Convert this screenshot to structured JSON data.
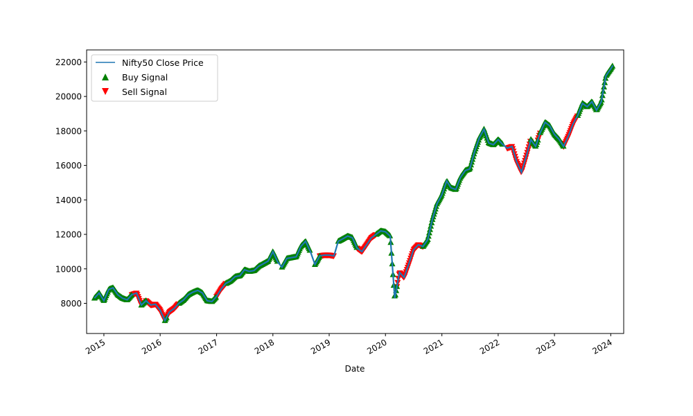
{
  "chart_data": {
    "type": "line",
    "title": "",
    "xlabel": "Date",
    "ylabel": "",
    "x_range": [
      "2014-09-11",
      "2024-03-25"
    ],
    "ylim": [
      6250,
      22700
    ],
    "y_ticks": [
      8000,
      10000,
      12000,
      14000,
      16000,
      18000,
      20000,
      22000
    ],
    "x_ticks": [
      {
        "label": "2015",
        "date": "2015-01-01"
      },
      {
        "label": "2016",
        "date": "2016-01-01"
      },
      {
        "label": "2017",
        "date": "2017-01-01"
      },
      {
        "label": "2018",
        "date": "2018-01-01"
      },
      {
        "label": "2019",
        "date": "2019-01-01"
      },
      {
        "label": "2020",
        "date": "2020-01-01"
      },
      {
        "label": "2021",
        "date": "2021-01-01"
      },
      {
        "label": "2022",
        "date": "2022-01-01"
      },
      {
        "label": "2023",
        "date": "2023-01-01"
      },
      {
        "label": "2024",
        "date": "2024-01-01"
      }
    ],
    "grid": false,
    "legend_position": "top-left",
    "colors": {
      "line": "#1f77b4",
      "buy": "#008000",
      "sell": "#ff0000"
    },
    "series": [
      {
        "name": "Nifty50 Close Price",
        "kind": "line",
        "points": [
          [
            "2014-11-01",
            8300
          ],
          [
            "2014-12-01",
            8600
          ],
          [
            "2015-01-01",
            8150
          ],
          [
            "2015-02-01",
            8800
          ],
          [
            "2015-03-01",
            8900
          ],
          [
            "2015-04-01",
            8500
          ],
          [
            "2015-05-01",
            8300
          ],
          [
            "2015-06-01",
            8200
          ],
          [
            "2015-07-01",
            8500
          ],
          [
            "2015-08-01",
            8600
          ],
          [
            "2015-09-01",
            7900
          ],
          [
            "2015-10-01",
            8150
          ],
          [
            "2015-11-01",
            7900
          ],
          [
            "2015-12-01",
            7950
          ],
          [
            "2016-01-01",
            7600
          ],
          [
            "2016-02-01",
            7000
          ],
          [
            "2016-03-01",
            7500
          ],
          [
            "2016-04-01",
            7700
          ],
          [
            "2016-05-01",
            8000
          ],
          [
            "2016-06-01",
            8200
          ],
          [
            "2016-07-01",
            8500
          ],
          [
            "2016-08-01",
            8650
          ],
          [
            "2016-09-01",
            8750
          ],
          [
            "2016-10-01",
            8600
          ],
          [
            "2016-11-01",
            8150
          ],
          [
            "2016-12-01",
            8100
          ],
          [
            "2017-01-01",
            8400
          ],
          [
            "2017-02-01",
            8850
          ],
          [
            "2017-03-01",
            9150
          ],
          [
            "2017-04-01",
            9300
          ],
          [
            "2017-05-01",
            9550
          ],
          [
            "2017-06-01",
            9600
          ],
          [
            "2017-07-01",
            9950
          ],
          [
            "2017-08-01",
            9850
          ],
          [
            "2017-09-01",
            9900
          ],
          [
            "2017-10-01",
            10150
          ],
          [
            "2017-11-01",
            10300
          ],
          [
            "2017-12-01",
            10450
          ],
          [
            "2018-01-01",
            11000
          ],
          [
            "2018-02-01",
            10400
          ],
          [
            "2018-03-01",
            10100
          ],
          [
            "2018-04-01",
            10600
          ],
          [
            "2018-05-01",
            10650
          ],
          [
            "2018-06-01",
            10700
          ],
          [
            "2018-07-01",
            11300
          ],
          [
            "2018-08-01",
            11600
          ],
          [
            "2018-09-01",
            11000
          ],
          [
            "2018-10-01",
            10250
          ],
          [
            "2018-11-01",
            10750
          ],
          [
            "2018-12-01",
            10800
          ],
          [
            "2019-01-01",
            10800
          ],
          [
            "2019-02-01",
            10750
          ],
          [
            "2019-03-01",
            11600
          ],
          [
            "2019-04-01",
            11750
          ],
          [
            "2019-05-01",
            11900
          ],
          [
            "2019-06-01",
            11800
          ],
          [
            "2019-07-01",
            11200
          ],
          [
            "2019-08-01",
            11000
          ],
          [
            "2019-09-01",
            11400
          ],
          [
            "2019-10-01",
            11800
          ],
          [
            "2019-11-01",
            12000
          ],
          [
            "2019-12-01",
            12200
          ],
          [
            "2020-01-01",
            12150
          ],
          [
            "2020-02-01",
            11900
          ],
          [
            "2020-03-01",
            8300
          ],
          [
            "2020-04-01",
            9800
          ],
          [
            "2020-05-01",
            9500
          ],
          [
            "2020-06-01",
            10300
          ],
          [
            "2020-07-01",
            11100
          ],
          [
            "2020-08-01",
            11400
          ],
          [
            "2020-09-01",
            11300
          ],
          [
            "2020-10-01",
            11700
          ],
          [
            "2020-11-01",
            12900
          ],
          [
            "2020-12-01",
            13800
          ],
          [
            "2021-01-01",
            14300
          ],
          [
            "2021-02-01",
            15100
          ],
          [
            "2021-03-01",
            14700
          ],
          [
            "2021-04-01",
            14600
          ],
          [
            "2021-05-01",
            15300
          ],
          [
            "2021-06-01",
            15700
          ],
          [
            "2021-07-01",
            15800
          ],
          [
            "2021-08-01",
            16800
          ],
          [
            "2021-09-01",
            17600
          ],
          [
            "2021-10-01",
            18100
          ],
          [
            "2021-11-01",
            17300
          ],
          [
            "2021-12-01",
            17200
          ],
          [
            "2022-01-01",
            17500
          ],
          [
            "2022-02-01",
            17200
          ],
          [
            "2022-03-01",
            17000
          ],
          [
            "2022-04-01",
            17100
          ],
          [
            "2022-05-01",
            16200
          ],
          [
            "2022-06-01",
            15600
          ],
          [
            "2022-07-01",
            16500
          ],
          [
            "2022-08-01",
            17500
          ],
          [
            "2022-09-01",
            17100
          ],
          [
            "2022-10-01",
            17900
          ],
          [
            "2022-11-01",
            18500
          ],
          [
            "2022-12-01",
            18300
          ],
          [
            "2023-01-01",
            17800
          ],
          [
            "2023-02-01",
            17500
          ],
          [
            "2023-03-01",
            17100
          ],
          [
            "2023-04-01",
            17700
          ],
          [
            "2023-05-01",
            18400
          ],
          [
            "2023-06-01",
            18900
          ],
          [
            "2023-07-01",
            19600
          ],
          [
            "2023-08-01",
            19400
          ],
          [
            "2023-09-01",
            19700
          ],
          [
            "2023-10-01",
            19200
          ],
          [
            "2023-11-01",
            19700
          ],
          [
            "2023-12-01",
            21200
          ],
          [
            "2024-01-01",
            21600
          ],
          [
            "2024-01-15",
            21800
          ]
        ]
      },
      {
        "name": "Buy Signal",
        "kind": "scatter",
        "marker": "triangle-up",
        "ranges": [
          [
            "2014-11-01",
            "2015-07-01"
          ],
          [
            "2015-09-01",
            "2015-10-01"
          ],
          [
            "2016-02-01",
            "2016-02-15"
          ],
          [
            "2016-05-01",
            "2016-12-31"
          ],
          [
            "2017-03-01",
            "2018-02-01"
          ],
          [
            "2018-03-01",
            "2018-09-01"
          ],
          [
            "2018-10-01",
            "2018-11-01"
          ],
          [
            "2019-03-01",
            "2019-07-01"
          ],
          [
            "2019-11-01",
            "2020-03-15"
          ],
          [
            "2020-09-01",
            "2022-02-01"
          ],
          [
            "2022-08-01",
            "2022-09-15"
          ],
          [
            "2022-10-01",
            "2023-03-01"
          ],
          [
            "2023-06-01",
            "2024-01-15"
          ]
        ]
      },
      {
        "name": "Sell Signal",
        "kind": "scatter",
        "marker": "triangle-down",
        "ranges": [
          [
            "2015-07-01",
            "2015-09-01"
          ],
          [
            "2015-10-01",
            "2016-05-01"
          ],
          [
            "2016-12-31",
            "2017-03-01"
          ],
          [
            "2018-11-01",
            "2019-02-01"
          ],
          [
            "2019-07-01",
            "2019-11-01"
          ],
          [
            "2020-03-15",
            "2020-09-01"
          ],
          [
            "2022-03-01",
            "2022-08-01"
          ],
          [
            "2022-09-15",
            "2022-10-01"
          ],
          [
            "2023-03-01",
            "2023-06-01"
          ]
        ]
      }
    ]
  }
}
